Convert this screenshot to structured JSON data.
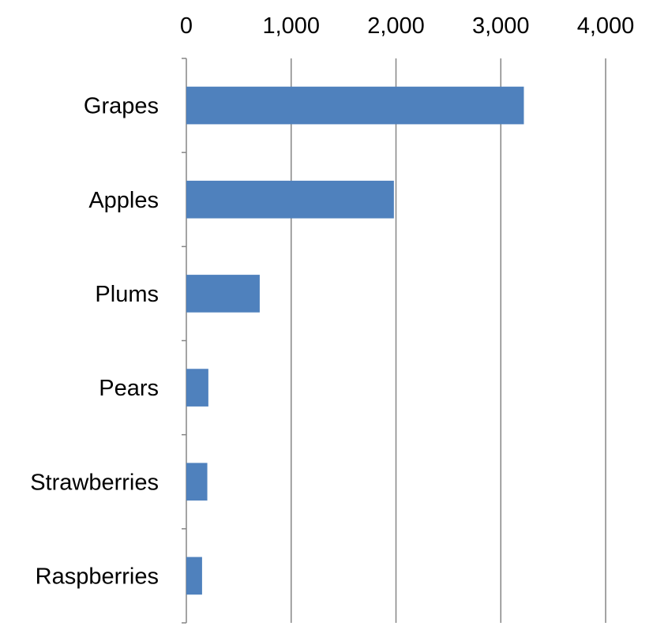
{
  "chart_data": {
    "type": "bar",
    "orientation": "horizontal",
    "categories": [
      "Grapes",
      "Apples",
      "Plums",
      "Pears",
      "Strawberries",
      "Raspberries"
    ],
    "values": [
      3220,
      1980,
      700,
      210,
      200,
      150
    ],
    "xlim": [
      0,
      4000
    ],
    "ticks": [
      0,
      1000,
      2000,
      3000,
      4000
    ],
    "tick_labels": [
      "0",
      "1,000",
      "2,000",
      "3,000",
      "4,000"
    ],
    "x_axis_position": "top",
    "grid": true,
    "bar_color": "#4f81bd",
    "grid_color": "#868686",
    "axis_color": "#868686"
  }
}
